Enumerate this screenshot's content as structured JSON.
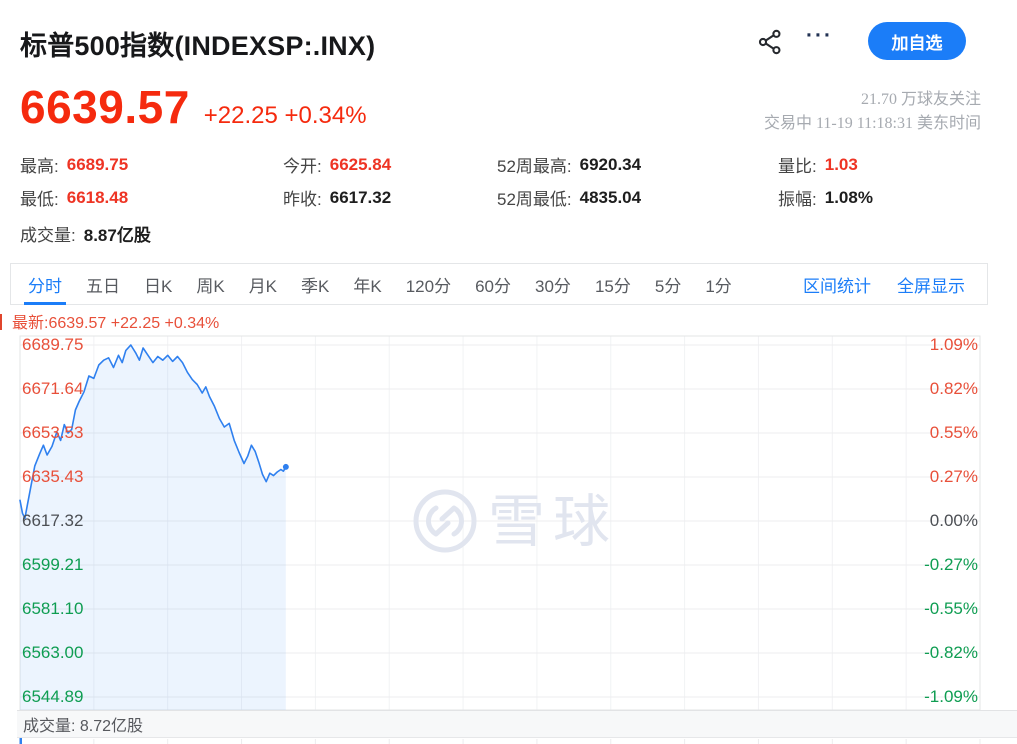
{
  "header": {
    "title": "标普500指数(INDEXSP:.INX)",
    "more_icon": "···",
    "follow_button": "加自选"
  },
  "quote": {
    "price": "6639.57",
    "change": "+22.25 +0.34%",
    "followers": "21.70 万球友关注",
    "session": "交易中 11-19 11:18:31 美东时间"
  },
  "stats": [
    {
      "label": "最高:",
      "value": "6689.75",
      "color": "red"
    },
    {
      "label": "今开:",
      "value": "6625.84",
      "color": "red"
    },
    {
      "label": "52周最高:",
      "value": "6920.34",
      "color": "dark"
    },
    {
      "label": "量比:",
      "value": "1.03",
      "color": "red"
    },
    {
      "label": "最低:",
      "value": "6618.48",
      "color": "red"
    },
    {
      "label": "昨收:",
      "value": "6617.32",
      "color": "dark"
    },
    {
      "label": "52周最低:",
      "value": "4835.04",
      "color": "dark"
    },
    {
      "label": "振幅:",
      "value": "1.08%",
      "color": "dark"
    },
    {
      "label": "成交量:",
      "value": "8.87亿股",
      "color": "dark"
    }
  ],
  "tabs": {
    "items": [
      {
        "label": "分时",
        "active": true
      },
      {
        "label": "五日",
        "active": false
      },
      {
        "label": "日K",
        "active": false
      },
      {
        "label": "周K",
        "active": false
      },
      {
        "label": "月K",
        "active": false
      },
      {
        "label": "季K",
        "active": false
      },
      {
        "label": "年K",
        "active": false
      },
      {
        "label": "120分",
        "active": false
      },
      {
        "label": "60分",
        "active": false
      },
      {
        "label": "30分",
        "active": false
      },
      {
        "label": "15分",
        "active": false
      },
      {
        "label": "5分",
        "active": false
      },
      {
        "label": "1分",
        "active": false
      }
    ],
    "links": [
      "区间统计",
      "全屏显示"
    ]
  },
  "chart_header": "最新:6639.57 +22.25 +0.34%",
  "watermark": "雪球",
  "volume_strip": "成交量: 8.72亿股",
  "colors": {
    "up_red": "#ee3424",
    "down_green": "#0f9d52",
    "accent_blue": "#1b7df8",
    "price_red": "#f52a0e"
  },
  "chart_data": {
    "type": "line",
    "title": "标普500指数 分时",
    "x_unit": "minutes since 09:30 美东时间",
    "session_minutes": 390,
    "elapsed_minutes": 108,
    "prev_close": 6617.32,
    "day_high": 6689.75,
    "day_low": 6618.48,
    "last": 6639.57,
    "ylim": [
      6544.89,
      6689.75
    ],
    "pct_lim": [
      "-1.09%",
      "1.09%"
    ],
    "grid": true,
    "legend_position": "none",
    "line_color": "#2f80ef",
    "fill_color": "rgba(47,128,239,0.09)",
    "y_axis_left": [
      {
        "t": "6689.75",
        "c": "up"
      },
      {
        "t": "6671.64",
        "c": "up"
      },
      {
        "t": "6653.53",
        "c": "up"
      },
      {
        "t": "6635.43",
        "c": "up"
      },
      {
        "t": "6617.32",
        "c": "flat"
      },
      {
        "t": "6599.21",
        "c": "down"
      },
      {
        "t": "6581.10",
        "c": "down"
      },
      {
        "t": "6563.00",
        "c": "down"
      },
      {
        "t": "6544.89",
        "c": "down"
      }
    ],
    "y_axis_right": [
      {
        "t": "1.09%",
        "c": "up"
      },
      {
        "t": "0.82%",
        "c": "up"
      },
      {
        "t": "0.55%",
        "c": "up"
      },
      {
        "t": "0.27%",
        "c": "up"
      },
      {
        "t": "0.00%",
        "c": "flat"
      },
      {
        "t": "-0.27%",
        "c": "down"
      },
      {
        "t": "-0.55%",
        "c": "down"
      },
      {
        "t": "-0.82%",
        "c": "down"
      },
      {
        "t": "-1.09%",
        "c": "down"
      }
    ],
    "series": [
      {
        "name": "price",
        "points": [
          [
            0,
            6625.84
          ],
          [
            1,
            6620.5
          ],
          [
            2,
            6618.48
          ],
          [
            3,
            6624.0
          ],
          [
            4.5,
            6632.0
          ],
          [
            6,
            6640.0
          ],
          [
            8,
            6645.0
          ],
          [
            9.5,
            6648.5
          ],
          [
            11,
            6644.5
          ],
          [
            13,
            6648.0
          ],
          [
            15,
            6654.0
          ],
          [
            16.5,
            6650.5
          ],
          [
            18,
            6657.0
          ],
          [
            19.5,
            6653.5
          ],
          [
            21,
            6655.0
          ],
          [
            22.5,
            6663.0
          ],
          [
            24,
            6666.5
          ],
          [
            26,
            6670.5
          ],
          [
            28,
            6677.0
          ],
          [
            30,
            6676.0
          ],
          [
            32,
            6681.5
          ],
          [
            34,
            6683.5
          ],
          [
            36,
            6684.5
          ],
          [
            38,
            6680.5
          ],
          [
            40,
            6685.5
          ],
          [
            41.5,
            6682.5
          ],
          [
            43,
            6687.5
          ],
          [
            45,
            6689.75
          ],
          [
            47,
            6686.5
          ],
          [
            48.5,
            6683.5
          ],
          [
            50,
            6688.5
          ],
          [
            52,
            6685.5
          ],
          [
            54,
            6682.5
          ],
          [
            56,
            6685.0
          ],
          [
            58,
            6683.5
          ],
          [
            60,
            6685.5
          ],
          [
            62,
            6683.0
          ],
          [
            64,
            6685.0
          ],
          [
            66,
            6682.5
          ],
          [
            68,
            6678.5
          ],
          [
            70,
            6675.5
          ],
          [
            72,
            6673.5
          ],
          [
            74,
            6670.0
          ],
          [
            75.5,
            6672.5
          ],
          [
            77,
            6668.5
          ],
          [
            79,
            6664.5
          ],
          [
            81,
            6659.5
          ],
          [
            83,
            6656.0
          ],
          [
            85,
            6657.5
          ],
          [
            87,
            6650.5
          ],
          [
            89,
            6645.5
          ],
          [
            91,
            6641.0
          ],
          [
            92.5,
            6644.0
          ],
          [
            94,
            6648.5
          ],
          [
            95.5,
            6646.0
          ],
          [
            97,
            6641.5
          ],
          [
            98.5,
            6636.5
          ],
          [
            100,
            6633.5
          ],
          [
            101.5,
            6637.0
          ],
          [
            103,
            6636.0
          ],
          [
            104.5,
            6637.5
          ],
          [
            106,
            6638.5
          ],
          [
            107,
            6637.8
          ],
          [
            108,
            6639.57
          ]
        ]
      }
    ]
  }
}
